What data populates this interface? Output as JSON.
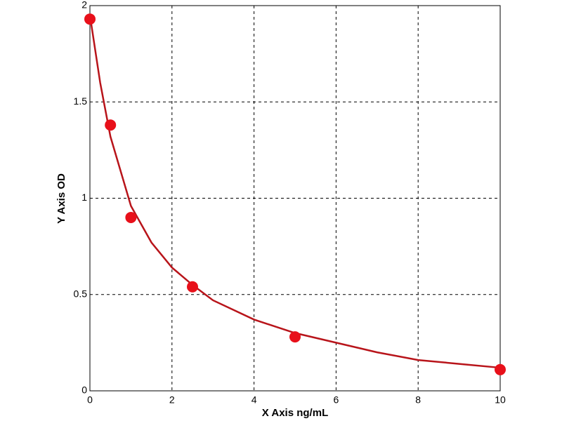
{
  "chart_data": {
    "type": "scatter",
    "x_label": "X Axis ng/mL",
    "y_label": "Y Axis OD",
    "series": [
      {
        "color": "#e8101a",
        "x": [
          0,
          0.5,
          1,
          2.5,
          5,
          10
        ],
        "values": [
          1.93,
          1.38,
          0.9,
          0.54,
          0.28,
          0.11
        ]
      }
    ],
    "curve": {
      "color": "#b8141a",
      "x": [
        0,
        0.25,
        0.5,
        1,
        1.5,
        2,
        2.5,
        3,
        4,
        5,
        6,
        7,
        8,
        9,
        10
      ],
      "values": [
        1.95,
        1.6,
        1.32,
        0.96,
        0.77,
        0.64,
        0.55,
        0.47,
        0.37,
        0.3,
        0.25,
        0.2,
        0.16,
        0.14,
        0.12
      ]
    },
    "xlim": [
      0,
      10
    ],
    "xticks": [
      0,
      2,
      4,
      6,
      8,
      10
    ],
    "ylim": [
      0,
      2
    ],
    "yticks": [
      0,
      0.5,
      1,
      1.5,
      2
    ],
    "grid": true
  }
}
